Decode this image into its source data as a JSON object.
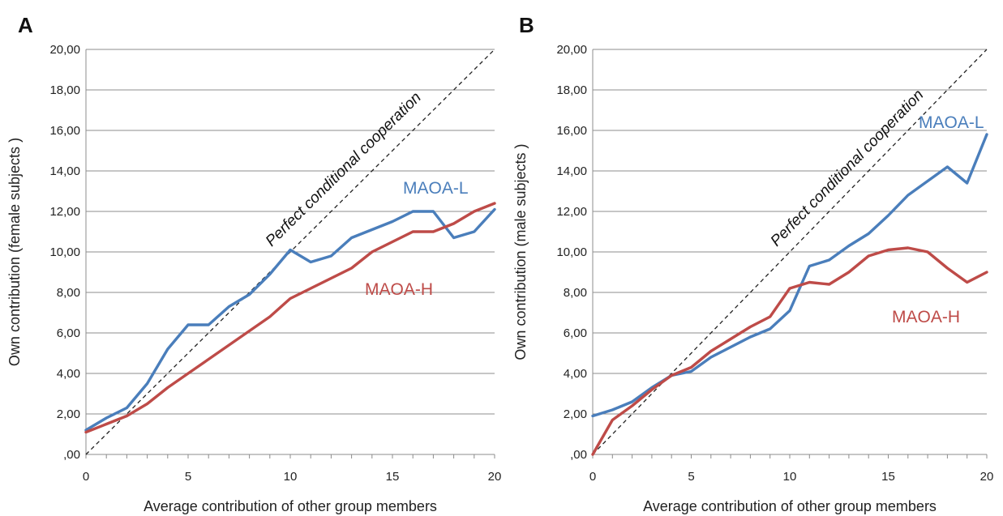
{
  "chart_data": [
    {
      "type": "line",
      "panel_label": "A",
      "xlabel": "Average contribution of other group members",
      "ylabel": "Own contribution (female subjects )",
      "xlim": [
        0,
        20
      ],
      "ylim": [
        0,
        20
      ],
      "x_ticks": [
        "0",
        "5",
        "10",
        "15",
        "20"
      ],
      "y_ticks": [
        ",00",
        "2,00",
        "4,00",
        "6,00",
        "8,00",
        "10,00",
        "12,00",
        "14,00",
        "16,00",
        "18,00",
        "20,00"
      ],
      "grid": true,
      "reference_line": {
        "label": "Perfect conditional cooperation",
        "from": [
          0,
          0
        ],
        "to": [
          20,
          20
        ],
        "style": "dashed"
      },
      "x": [
        0,
        1,
        2,
        3,
        4,
        5,
        6,
        7,
        8,
        9,
        10,
        11,
        12,
        13,
        14,
        15,
        16,
        17,
        18,
        19,
        20
      ],
      "series": [
        {
          "name": "MAOA-L",
          "color": "#4a7ebb",
          "values": [
            1.2,
            1.8,
            2.3,
            3.5,
            5.2,
            6.4,
            6.4,
            7.3,
            7.9,
            8.9,
            10.1,
            9.5,
            9.8,
            10.7,
            11.1,
            11.5,
            12.0,
            12.0,
            10.7,
            11.0,
            12.1
          ]
        },
        {
          "name": "MAOA-H",
          "color": "#be4b48",
          "values": [
            1.1,
            1.5,
            1.9,
            2.5,
            3.3,
            4.0,
            4.7,
            5.4,
            6.1,
            6.8,
            7.7,
            8.2,
            8.7,
            9.2,
            10.0,
            10.5,
            11.0,
            11.0,
            11.4,
            12.0,
            12.4
          ]
        }
      ]
    },
    {
      "type": "line",
      "panel_label": "B",
      "xlabel": "Average contribution of other group members",
      "ylabel": "Own contribution (male subjects )",
      "xlim": [
        0,
        20
      ],
      "ylim": [
        0,
        20
      ],
      "x_ticks": [
        "0",
        "5",
        "10",
        "15",
        "20"
      ],
      "y_ticks": [
        ",00",
        "2,00",
        "4,00",
        "6,00",
        "8,00",
        "10,00",
        "12,00",
        "14,00",
        "16,00",
        "18,00",
        "20,00"
      ],
      "grid": true,
      "reference_line": {
        "label": "Perfect conditional cooperation",
        "from": [
          0,
          0
        ],
        "to": [
          20,
          20
        ],
        "style": "dashed"
      },
      "x": [
        0,
        1,
        2,
        3,
        4,
        5,
        6,
        7,
        8,
        9,
        10,
        11,
        12,
        13,
        14,
        15,
        16,
        17,
        18,
        19,
        20
      ],
      "series": [
        {
          "name": "MAOA-L",
          "color": "#4a7ebb",
          "values": [
            1.9,
            2.2,
            2.6,
            3.3,
            3.9,
            4.1,
            4.8,
            5.3,
            5.8,
            6.2,
            7.1,
            9.3,
            9.6,
            10.3,
            10.9,
            11.8,
            12.8,
            13.5,
            14.2,
            13.4,
            15.8
          ]
        },
        {
          "name": "MAOA-H",
          "color": "#be4b48",
          "values": [
            0.0,
            1.7,
            2.4,
            3.2,
            3.9,
            4.3,
            5.1,
            5.7,
            6.3,
            6.8,
            8.2,
            8.5,
            8.4,
            9.0,
            9.8,
            10.1,
            10.2,
            10.0,
            9.2,
            8.5,
            9.0
          ]
        }
      ]
    }
  ]
}
